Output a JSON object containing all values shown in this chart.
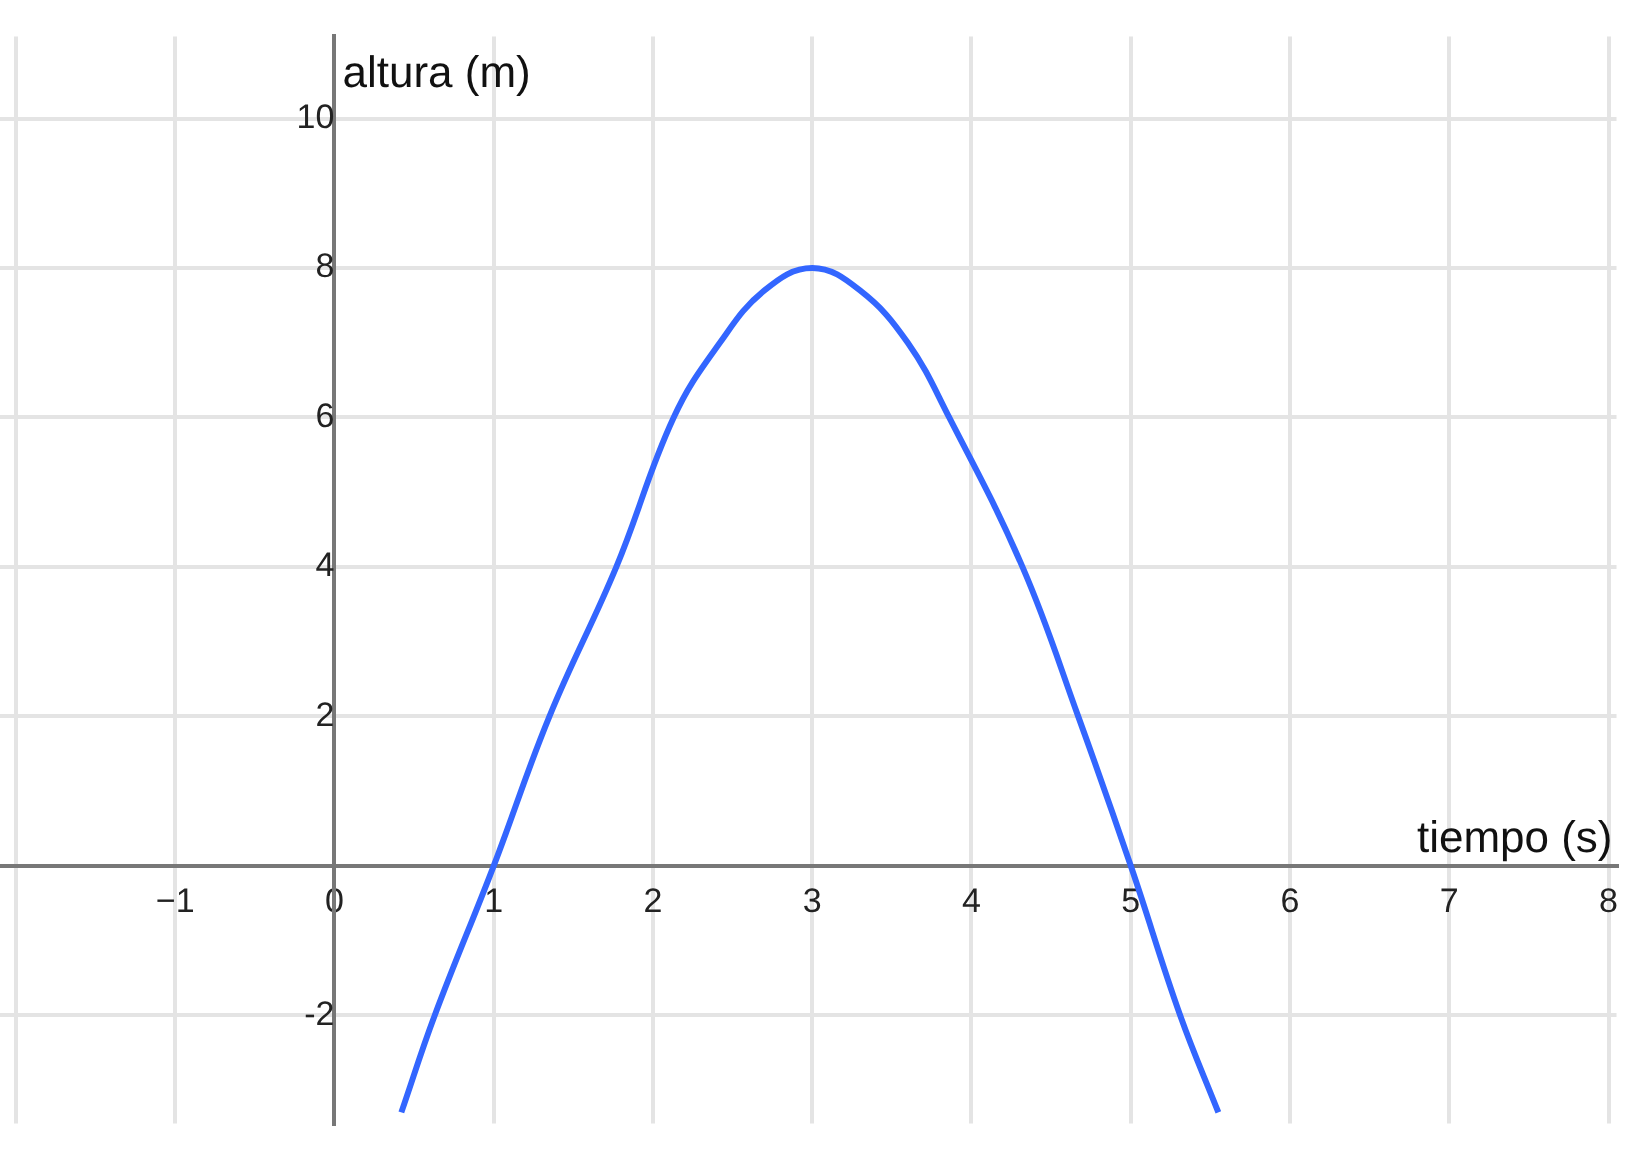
{
  "chart_data": {
    "type": "line",
    "xlabel": "tiempo (s)",
    "ylabel": "altura (m)",
    "x": [
      0.42,
      0.63,
      1,
      1.35,
      1.77,
      2.13,
      2.42,
      2.7,
      3,
      3.3,
      3.6,
      3.86,
      4.32,
      4.67,
      5,
      5.31,
      5.55
    ],
    "series": [
      {
        "color": "#3366ff",
        "values": [
          -3.3,
          -2,
          0,
          2,
          4,
          6,
          7,
          7.7,
          8,
          7.7,
          7,
          6,
          4,
          2,
          0,
          -2,
          -3.3
        ]
      }
    ],
    "xlim": [
      -2.1,
      8.05
    ],
    "ylim": [
      -3.45,
      11.1
    ],
    "xticks": [
      {
        "value": -2,
        "label": null
      },
      {
        "value": -1,
        "label": "−1"
      },
      0,
      1,
      2,
      3,
      4,
      5,
      6,
      7,
      8
    ],
    "yticks": [
      -2,
      {
        "value": 0,
        "label": null
      },
      2,
      4,
      6,
      8,
      10
    ],
    "grid": true,
    "legend": false,
    "marker": "none",
    "line_style": "solid"
  }
}
